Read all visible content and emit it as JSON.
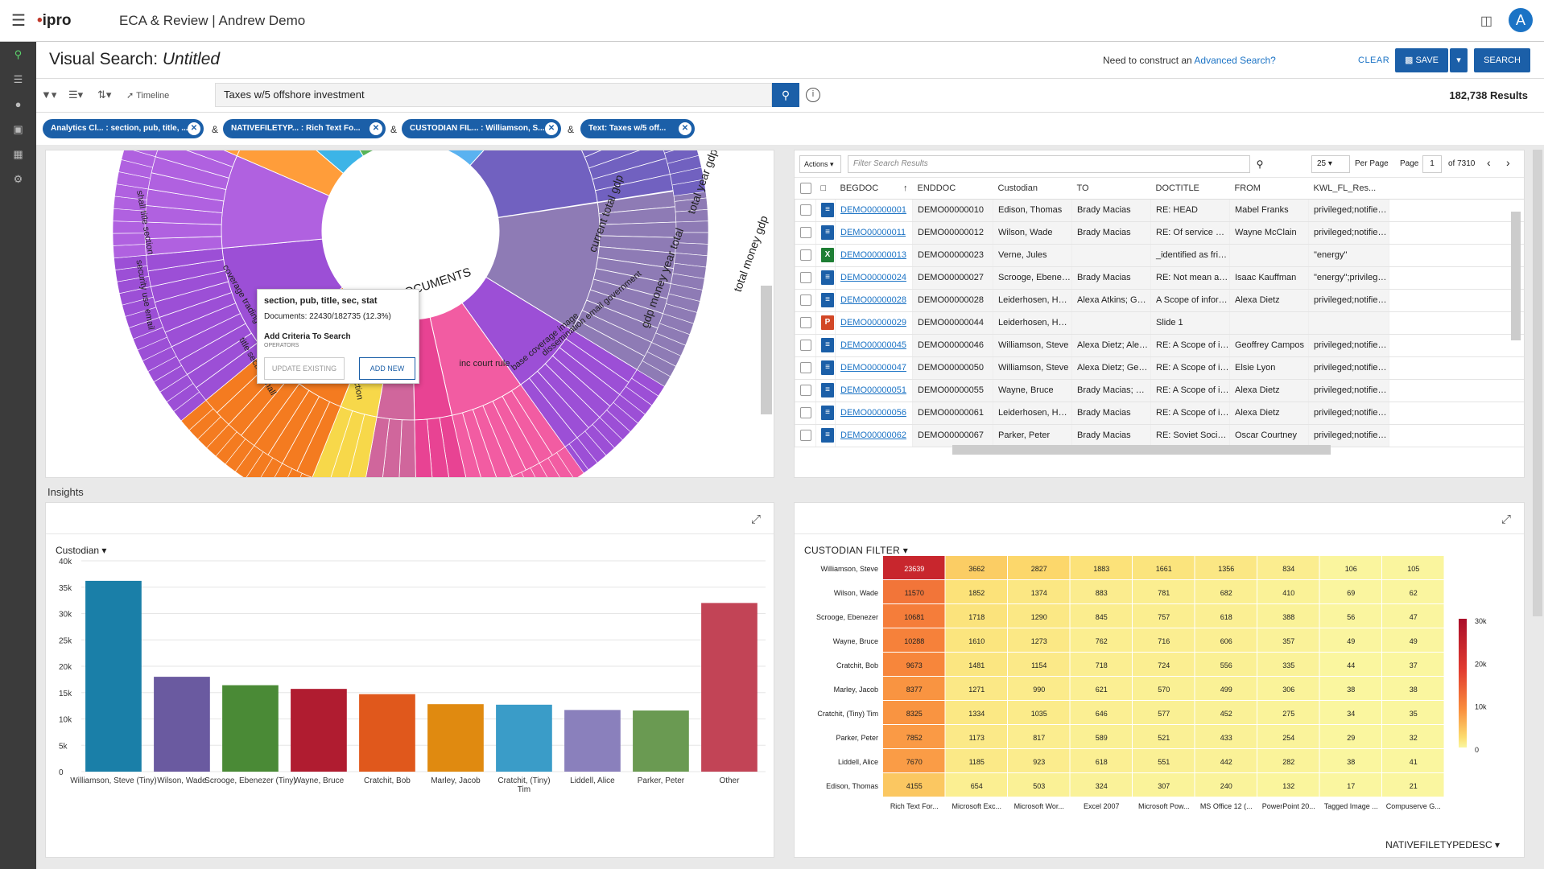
{
  "app": {
    "logo": "ipro",
    "title": "ECA & Review",
    "project": "Andrew Demo",
    "avatar": "A"
  },
  "header": {
    "title": "Visual Search:",
    "title_italic": "Untitled",
    "adv_prefix": "Need to construct an",
    "adv_link": "Advanced Search?",
    "clear": "CLEAR",
    "save": "SAVE",
    "search": "SEARCH"
  },
  "toolbar": {
    "timeline": "Timeline",
    "query": "Taxes w/5 offshore investment",
    "results": "182,738 Results"
  },
  "chips": [
    {
      "label": "Analytics Cl... : section, pub, title, ..."
    },
    {
      "label": "NATIVEFILETYP... : Rich Text Fo..."
    },
    {
      "label": "CUSTODIAN FIL... : Williamson, S..."
    },
    {
      "label": "Text: Taxes w/5 off..."
    }
  ],
  "amp": "&",
  "sunburst": {
    "center_label": "DOCUMENTS",
    "labels": [
      "current total gdp",
      "gdp money year total",
      "total money gdp",
      "total year gdp",
      "inc court rule",
      "base coverage image",
      "dissemination email government",
      "section, pub, title",
      "entry property email",
      "shall title section",
      "security use email",
      "title section shall",
      "coverage trading",
      "shall pub section"
    ]
  },
  "tooltip": {
    "heading": "section, pub, title, sec, stat",
    "docs": "Documents: 22430/182735 (12.3%)",
    "add": "Add Criteria To Search",
    "operators": "OPERATORS",
    "update": "UPDATE EXISTING",
    "addnew": "ADD NEW"
  },
  "grid": {
    "actions": "Actions",
    "filter_placeholder": "Filter Search Results",
    "per_page_value": "25",
    "per_page_label": "Per Page",
    "page_label": "Page",
    "page_value": "1",
    "of": "of 7310",
    "columns": [
      "BEGDOC",
      "ENDDOC",
      "Custodian",
      "TO",
      "DOCTITLE",
      "FROM",
      "KWL_FL_Res..."
    ],
    "rows": [
      {
        "type": "doc",
        "beg": "DEMO00000001",
        "end": "DEMO00000010",
        "cust": "Edison, Thomas",
        "to": "Brady Macias",
        "title": "RE: HEAD",
        "from": "Mabel Franks",
        "kwl": "privileged;notified;s..."
      },
      {
        "type": "doc",
        "beg": "DEMO00000011",
        "end": "DEMO00000012",
        "cust": "Wilson, Wade",
        "to": "Brady Macias",
        "title": "RE: Of service of th...",
        "from": "Wayne McClain",
        "kwl": "privileged;notified;J..."
      },
      {
        "type": "xls",
        "beg": "DEMO00000013",
        "end": "DEMO00000023",
        "cust": "Verne, Jules",
        "to": "",
        "title": "_identified as frivol...",
        "from": "",
        "kwl": "\"energy\""
      },
      {
        "type": "doc",
        "beg": "DEMO00000024",
        "end": "DEMO00000027",
        "cust": "Scrooge, Ebenezer",
        "to": "Brady Macias",
        "title": "RE: Not mean any s...",
        "from": "Isaac Kauffman",
        "kwl": "\"energy\";privileged;n..."
      },
      {
        "type": "doc",
        "beg": "DEMO00000028",
        "end": "DEMO00000028",
        "cust": "Leiderhosen, Hansel",
        "to": "Alexa Atkins; Geoffr...",
        "title": "A Scope of informa...",
        "from": "Alexa Dietz",
        "kwl": "privileged;notified;J..."
      },
      {
        "type": "ppt",
        "beg": "DEMO00000029",
        "end": "DEMO00000044",
        "cust": "Leiderhosen, Hansel",
        "to": "",
        "title": "Slide 1",
        "from": "",
        "kwl": ""
      },
      {
        "type": "doc",
        "beg": "DEMO00000045",
        "end": "DEMO00000046",
        "cust": "Williamson, Steve",
        "to": "Alexa Dietz; Alexa A...",
        "title": "RE: A Scope of infor...",
        "from": "Geoffrey Campos",
        "kwl": "privileged;notified;J..."
      },
      {
        "type": "doc",
        "beg": "DEMO00000047",
        "end": "DEMO00000050",
        "cust": "Williamson, Steve",
        "to": "Alexa Dietz; Geoffre...",
        "title": "RE: A Scope of infor...",
        "from": "Elsie Lyon",
        "kwl": "privileged;notified;J..."
      },
      {
        "type": "doc",
        "beg": "DEMO00000051",
        "end": "DEMO00000055",
        "cust": "Wayne, Bruce",
        "to": "Brady Macias; Elsie ...",
        "title": "RE: A Scope of infor...",
        "from": "Alexa Dietz",
        "kwl": "privileged;notified;J..."
      },
      {
        "type": "doc",
        "beg": "DEMO00000056",
        "end": "DEMO00000061",
        "cust": "Leiderhosen, Hansel",
        "to": "Brady Macias",
        "title": "RE: A Scope of infor...",
        "from": "Alexa Dietz",
        "kwl": "privileged;notified;J..."
      },
      {
        "type": "doc",
        "beg": "DEMO00000062",
        "end": "DEMO00000067",
        "cust": "Parker, Peter",
        "to": "Brady Macias",
        "title": "RE: Soviet Socialist ...",
        "from": "Oscar Courtney",
        "kwl": "privileged;notified;J..."
      }
    ]
  },
  "insights": "Insights",
  "chart_data": [
    {
      "type": "bar",
      "selector": "Custodian",
      "categories": [
        "Williamson, Steve",
        "Wilson, Wade",
        "Scrooge, Ebenezer",
        "Wayne, Bruce",
        "Cratchit, Bob",
        "Marley, Jacob",
        "Cratchit, (Tiny) Tim",
        "Liddell, Alice",
        "Parker, Peter",
        "Other"
      ],
      "values": [
        36200,
        18000,
        16400,
        15700,
        14700,
        12800,
        12700,
        11700,
        11600,
        32000
      ],
      "colors": [
        "#1a7fa8",
        "#6a5aa0",
        "#4a8a36",
        "#b01c30",
        "#e0581c",
        "#e08a10",
        "#3a9cc8",
        "#8a80bc",
        "#6a9a52",
        "#c24456"
      ],
      "ylim": [
        0,
        40000
      ],
      "yticks": [
        "0",
        "5k",
        "10k",
        "15k",
        "20k",
        "25k",
        "30k",
        "35k",
        "40k"
      ]
    },
    {
      "type": "heatmap",
      "selector": "CUSTODIAN FILTER",
      "x_selector": "NATIVEFILETYPEDESC",
      "rows": [
        "Williamson, Steve",
        "Wilson, Wade",
        "Scrooge, Ebenezer",
        "Wayne, Bruce",
        "Cratchit, Bob",
        "Marley, Jacob",
        "Cratchit, (Tiny) Tim",
        "Parker, Peter",
        "Liddell, Alice",
        "Edison, Thomas"
      ],
      "cols": [
        "Rich Text For...",
        "Microsoft Exc...",
        "Microsoft Wor...",
        "Excel 2007",
        "Microsoft Pow...",
        "MS Office 12 (...",
        "PowerPoint 20...",
        "Tagged Image ...",
        "Compuserve G..."
      ],
      "values": [
        [
          23639,
          3662,
          2827,
          1883,
          1661,
          1356,
          834,
          106,
          105
        ],
        [
          11570,
          1852,
          1374,
          883,
          781,
          682,
          410,
          69,
          62
        ],
        [
          10681,
          1718,
          1290,
          845,
          757,
          618,
          388,
          56,
          47
        ],
        [
          10288,
          1610,
          1273,
          762,
          716,
          606,
          357,
          49,
          49
        ],
        [
          9673,
          1481,
          1154,
          718,
          724,
          556,
          335,
          44,
          37
        ],
        [
          8377,
          1271,
          990,
          621,
          570,
          499,
          306,
          38,
          38
        ],
        [
          8325,
          1334,
          1035,
          646,
          577,
          452,
          275,
          34,
          35
        ],
        [
          7852,
          1173,
          817,
          589,
          521,
          433,
          254,
          29,
          32
        ],
        [
          7670,
          1185,
          923,
          618,
          551,
          442,
          282,
          38,
          41
        ],
        [
          4155,
          654,
          503,
          324,
          307,
          240,
          132,
          17,
          21
        ]
      ],
      "legend_ticks": [
        "30k",
        "20k",
        "10k",
        "0"
      ],
      "scale_max": 30000
    }
  ]
}
